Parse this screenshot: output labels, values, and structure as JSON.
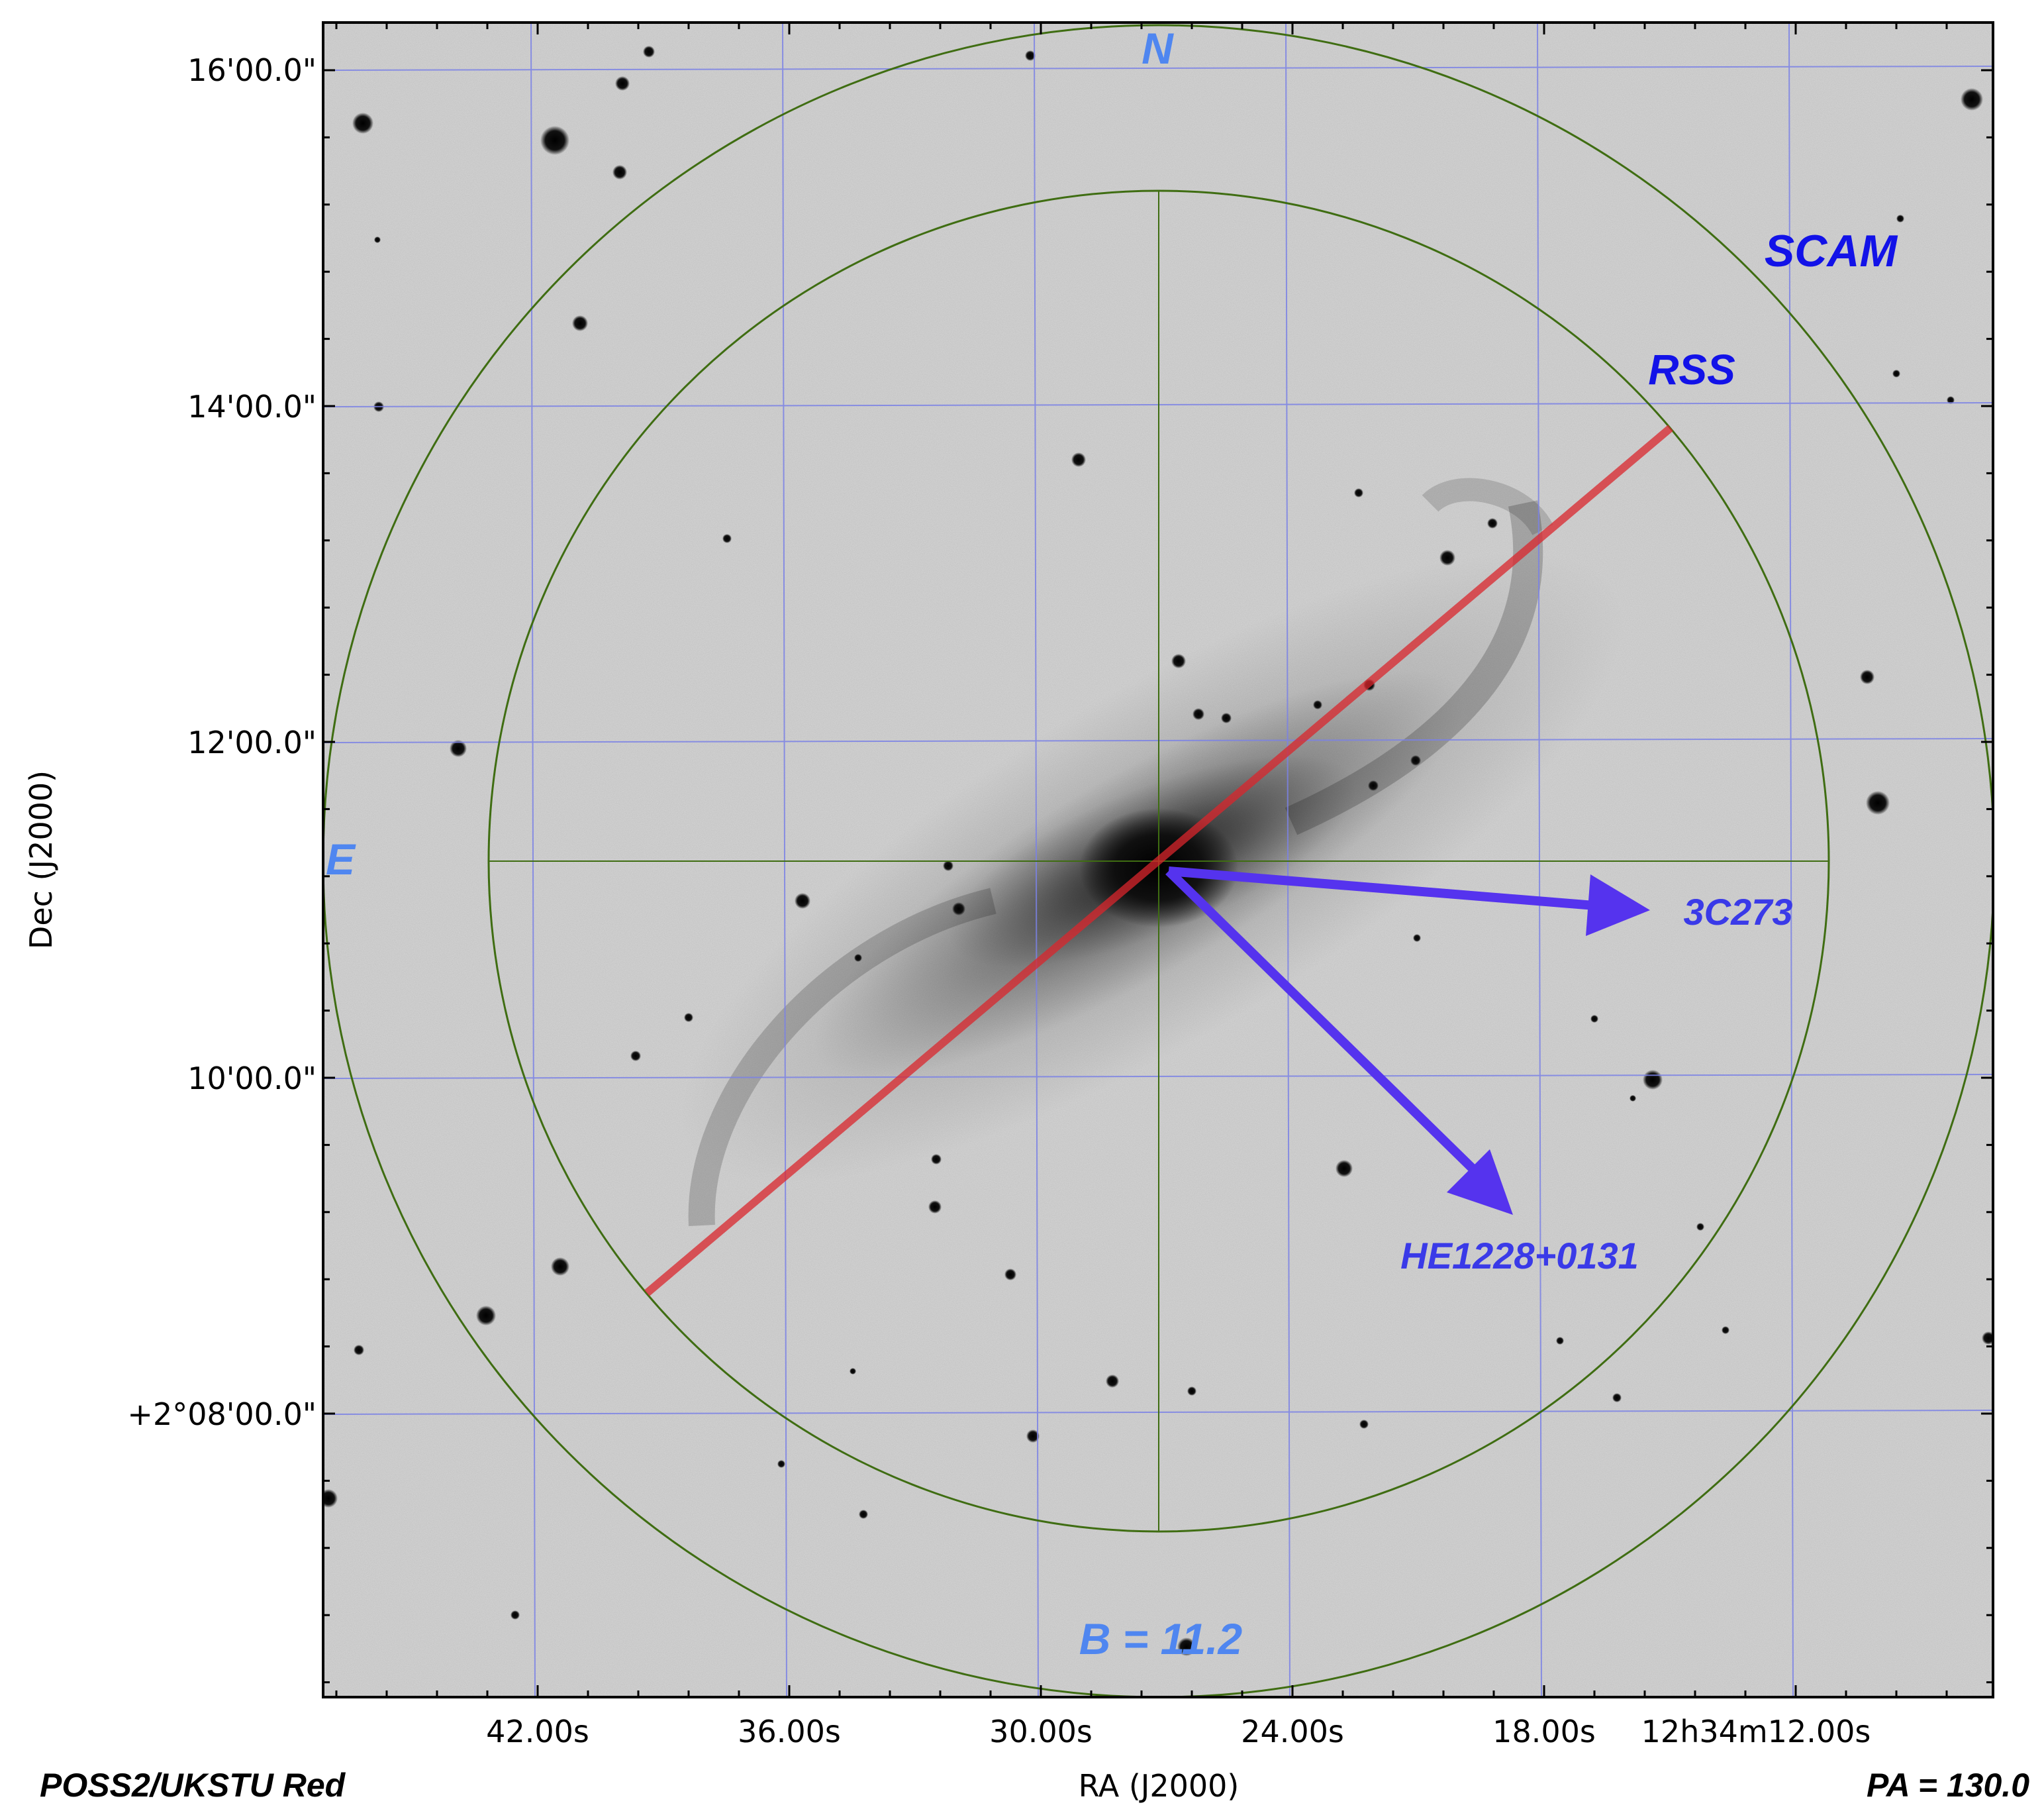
{
  "survey": "POSS2/UKSTU Red",
  "position_angle": "PA = 130.0",
  "axes": {
    "x_title": "RA (J2000)",
    "y_title": "Dec (J2000)",
    "x_ticks": [
      "42.00s",
      "36.00s",
      "30.00s",
      "24.00s",
      "18.00s",
      "12h34m12.00s"
    ],
    "y_ticks": [
      "16'00.0\"",
      "14'00.0\"",
      "12'00.0\"",
      "10'00.0\"",
      "+2°08'00.0\""
    ]
  },
  "overlays": {
    "north": "N",
    "east": "E",
    "scam": "SCAM",
    "rss": "RSS",
    "magnitude": "B = 11.2",
    "target_a": "3C273",
    "target_b": "HE1228+0131"
  },
  "colors": {
    "fov_circle": "#3f6d12",
    "grid": "#7b82e6",
    "slit": "#d9262c",
    "arrow": "#5533ee",
    "label_light": "#4f86f0",
    "label_dark": "#1212e8"
  }
}
